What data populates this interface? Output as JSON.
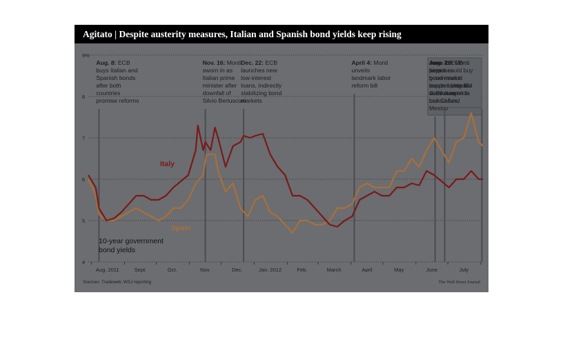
{
  "title": "Agitato | Despite austerity measures, Italian and Spanish bond yields keep rising",
  "source": "Sources: Tradeweb; WSJ reporting",
  "credit": "The Wall Street Journal",
  "colors": {
    "italy": "#7a1a1a",
    "spain": "#a8703a",
    "background": "#6b6d70",
    "title_bar": "#000000",
    "note_box": "#5e6165"
  },
  "annotations": [
    {
      "date": "Aug. 8:",
      "text": "ECB buys Italian and Spanish bonds after both countries promise reforms",
      "lines": [
        "buys Italian and",
        "Spanish bonds",
        "after both",
        "countries",
        "promise reforms"
      ],
      "first": "ECB",
      "at": "2011-08-08"
    },
    {
      "date": "Nov. 16:",
      "text": "Monti sworn in as Italian prime minister after downfall of Silvio Berlusconi",
      "lines": [
        "sworn in as",
        "Italian prime",
        "minister after",
        "downfall of",
        "Silvio Berlusconi"
      ],
      "first": "Monti",
      "at": "2011-11-16"
    },
    {
      "date": "Dec. 22:",
      "text": "ECB launches new low-interest loans, indirectly stabilizing bond markets",
      "lines": [
        "launches new",
        "low-interest",
        "loans, indirectly",
        "stabilizing bond",
        "markets"
      ],
      "first": "ECB",
      "at": "2011-12-22"
    },
    {
      "date": "April 4:",
      "text": "Monti unveils landmark labor reform bill",
      "lines": [
        "unveils",
        "landmark labor",
        "reform bill"
      ],
      "first": "Monti",
      "at": "2012-04-04"
    },
    {
      "date": "June 19:",
      "text": "Monti proposes bond-market support plan at G-20 summit in Los Cabos, Mexico",
      "lines": [
        "proposes",
        "bond-market",
        "support plan at",
        "G-20 summit in",
        "Los Cabos,",
        "Mexico"
      ],
      "first": "Monti",
      "at": "2012-06-19"
    },
    {
      "date": "June 28:",
      "text": "Monti forces bond-market support onto EU summit agenda",
      "lines": [
        "forces",
        "bond-market",
        "support onto EU",
        "summit agenda"
      ],
      "first": "Monti",
      "at": "2012-06-28"
    },
    {
      "date": "Aug. 2:",
      "text": "ECB says it could buy government bonds alongside euro-zone bailout fund",
      "lines": [
        "says it could buy",
        "government",
        "bonds alongside",
        "euro-zone",
        "bailout fund"
      ],
      "first": "ECB",
      "at": "2012-08-02"
    }
  ],
  "chart_data": {
    "type": "line",
    "title": "Agitato | Despite austerity measures, Italian and Spanish bond yields keep rising",
    "caption": "10-year government bond yields",
    "caption_lines": [
      "10-year government",
      "bond yields"
    ],
    "ylabel": "",
    "y_unit": "%",
    "ylim": [
      4,
      9
    ],
    "yticks": [
      4,
      5,
      6,
      7,
      8,
      9
    ],
    "ytick_labels": [
      "4",
      "5",
      "6",
      "7",
      "8",
      "9%"
    ],
    "x_ticks": [
      "Aug. 2011",
      "Sept.",
      "Oct.",
      "Nov.",
      "Dec.",
      "Jan. 2012",
      "Feb.",
      "March",
      "April",
      "May",
      "June",
      "July"
    ],
    "x_range": [
      "2011-07-29",
      "2012-08-03"
    ],
    "grid": "horizontal dotted",
    "series": [
      {
        "name": "Italy",
        "points": [
          [
            "2011-07-29",
            6.1
          ],
          [
            "2011-08-05",
            5.8
          ],
          [
            "2011-08-08",
            5.3
          ],
          [
            "2011-08-15",
            5.0
          ],
          [
            "2011-08-22",
            5.05
          ],
          [
            "2011-08-29",
            5.2
          ],
          [
            "2011-09-05",
            5.4
          ],
          [
            "2011-09-12",
            5.6
          ],
          [
            "2011-09-19",
            5.6
          ],
          [
            "2011-09-26",
            5.5
          ],
          [
            "2011-10-03",
            5.5
          ],
          [
            "2011-10-10",
            5.6
          ],
          [
            "2011-10-17",
            5.8
          ],
          [
            "2011-10-24",
            5.95
          ],
          [
            "2011-10-31",
            6.1
          ],
          [
            "2011-11-07",
            6.7
          ],
          [
            "2011-11-09",
            7.3
          ],
          [
            "2011-11-14",
            6.7
          ],
          [
            "2011-11-16",
            6.9
          ],
          [
            "2011-11-21",
            6.7
          ],
          [
            "2011-11-25",
            7.25
          ],
          [
            "2011-11-28",
            7.0
          ],
          [
            "2011-12-05",
            6.3
          ],
          [
            "2011-12-12",
            6.8
          ],
          [
            "2011-12-19",
            6.9
          ],
          [
            "2011-12-22",
            7.05
          ],
          [
            "2011-12-28",
            7.0
          ],
          [
            "2012-01-02",
            7.05
          ],
          [
            "2012-01-09",
            7.1
          ],
          [
            "2012-01-16",
            6.6
          ],
          [
            "2012-01-23",
            6.3
          ],
          [
            "2012-01-30",
            6.1
          ],
          [
            "2012-02-06",
            5.6
          ],
          [
            "2012-02-13",
            5.6
          ],
          [
            "2012-02-20",
            5.5
          ],
          [
            "2012-02-27",
            5.3
          ],
          [
            "2012-03-05",
            5.1
          ],
          [
            "2012-03-12",
            4.9
          ],
          [
            "2012-03-19",
            4.85
          ],
          [
            "2012-03-26",
            5.0
          ],
          [
            "2012-04-02",
            5.1
          ],
          [
            "2012-04-09",
            5.5
          ],
          [
            "2012-04-16",
            5.6
          ],
          [
            "2012-04-23",
            5.7
          ],
          [
            "2012-04-30",
            5.6
          ],
          [
            "2012-05-07",
            5.6
          ],
          [
            "2012-05-14",
            5.8
          ],
          [
            "2012-05-21",
            5.8
          ],
          [
            "2012-05-28",
            5.9
          ],
          [
            "2012-06-04",
            5.85
          ],
          [
            "2012-06-11",
            6.2
          ],
          [
            "2012-06-18",
            6.1
          ],
          [
            "2012-06-25",
            5.95
          ],
          [
            "2012-07-02",
            5.8
          ],
          [
            "2012-07-09",
            6.0
          ],
          [
            "2012-07-16",
            6.0
          ],
          [
            "2012-07-23",
            6.2
          ],
          [
            "2012-07-30",
            6.0
          ],
          [
            "2012-08-03",
            6.0
          ]
        ]
      },
      {
        "name": "Spain",
        "points": [
          [
            "2011-07-29",
            6.0
          ],
          [
            "2011-08-05",
            5.6
          ],
          [
            "2011-08-08",
            5.15
          ],
          [
            "2011-08-15",
            5.0
          ],
          [
            "2011-08-22",
            5.0
          ],
          [
            "2011-08-29",
            5.1
          ],
          [
            "2011-09-05",
            5.2
          ],
          [
            "2011-09-12",
            5.3
          ],
          [
            "2011-09-19",
            5.2
          ],
          [
            "2011-09-26",
            5.1
          ],
          [
            "2011-10-03",
            5.0
          ],
          [
            "2011-10-10",
            5.1
          ],
          [
            "2011-10-17",
            5.3
          ],
          [
            "2011-10-24",
            5.3
          ],
          [
            "2011-10-31",
            5.5
          ],
          [
            "2011-11-07",
            5.9
          ],
          [
            "2011-11-14",
            6.1
          ],
          [
            "2011-11-17",
            6.6
          ],
          [
            "2011-11-21",
            6.6
          ],
          [
            "2011-11-25",
            6.6
          ],
          [
            "2011-11-28",
            6.2
          ],
          [
            "2011-12-05",
            5.7
          ],
          [
            "2011-12-12",
            5.9
          ],
          [
            "2011-12-19",
            5.3
          ],
          [
            "2011-12-26",
            5.1
          ],
          [
            "2012-01-02",
            5.5
          ],
          [
            "2012-01-09",
            5.6
          ],
          [
            "2012-01-16",
            5.2
          ],
          [
            "2012-01-23",
            5.1
          ],
          [
            "2012-01-30",
            4.9
          ],
          [
            "2012-02-06",
            4.7
          ],
          [
            "2012-02-13",
            5.0
          ],
          [
            "2012-02-20",
            5.0
          ],
          [
            "2012-02-27",
            4.9
          ],
          [
            "2012-03-05",
            4.9
          ],
          [
            "2012-03-12",
            5.0
          ],
          [
            "2012-03-19",
            5.3
          ],
          [
            "2012-03-26",
            5.3
          ],
          [
            "2012-04-02",
            5.4
          ],
          [
            "2012-04-09",
            5.8
          ],
          [
            "2012-04-16",
            5.9
          ],
          [
            "2012-04-23",
            5.8
          ],
          [
            "2012-04-30",
            5.8
          ],
          [
            "2012-05-07",
            5.8
          ],
          [
            "2012-05-14",
            6.2
          ],
          [
            "2012-05-21",
            6.2
          ],
          [
            "2012-05-28",
            6.5
          ],
          [
            "2012-06-04",
            6.3
          ],
          [
            "2012-06-11",
            6.7
          ],
          [
            "2012-06-18",
            7.0
          ],
          [
            "2012-06-25",
            6.7
          ],
          [
            "2012-07-02",
            6.4
          ],
          [
            "2012-07-09",
            6.9
          ],
          [
            "2012-07-16",
            7.0
          ],
          [
            "2012-07-23",
            7.6
          ],
          [
            "2012-07-30",
            6.9
          ],
          [
            "2012-08-03",
            6.8
          ]
        ]
      }
    ]
  }
}
